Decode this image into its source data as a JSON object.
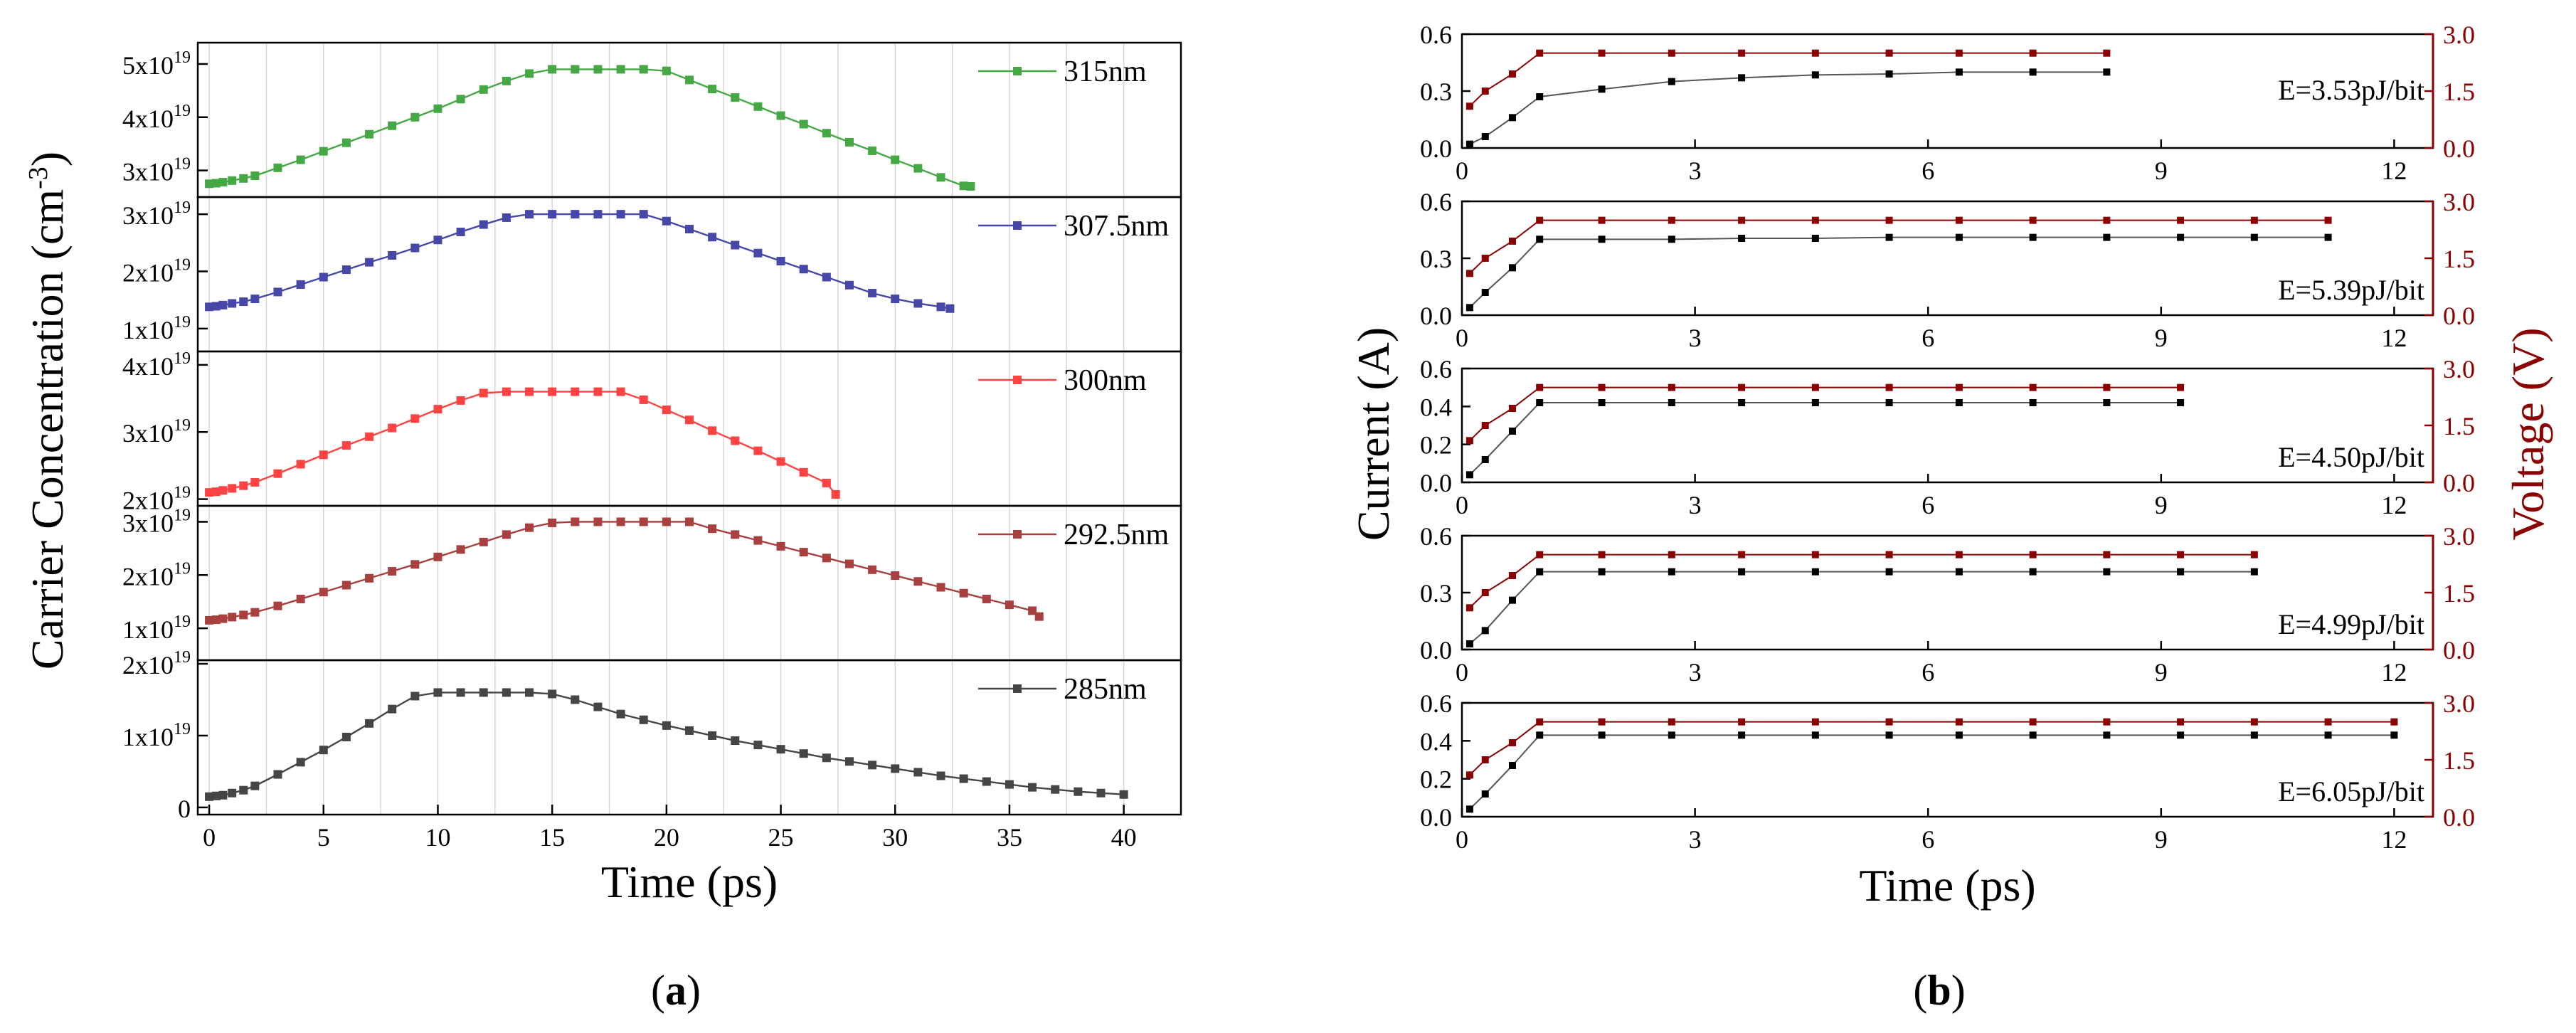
{
  "figure": {
    "label_a_pre": "(",
    "label_a_letter": "a",
    "label_a_post": ")",
    "label_b_pre": "(",
    "label_b_letter": "b",
    "label_b_post": ")"
  },
  "colors": {
    "s315": "#45a845",
    "s3075": "#4747a8",
    "s300": "#ff4242",
    "s2925": "#a84040",
    "s285": "#454545",
    "current": "#000000",
    "voltage": "#8b0000",
    "voltage_axis": "#8b0000"
  },
  "chart_data": [
    {
      "type": "line",
      "panel": "a",
      "xlabel": "Time (ps)",
      "ylabel": "Carrier Concentration (cm",
      "ylabel_sup": "-3",
      "ylabel_close": ")",
      "xlim": [
        -0.5,
        42.5
      ],
      "xticks": [
        0,
        5,
        10,
        15,
        20,
        25,
        30,
        35,
        40
      ],
      "vgrid": [
        2.5,
        7.5,
        12.5,
        17.5,
        22.5,
        27.5,
        32.5,
        37.5
      ],
      "panels": [
        {
          "name": "315nm",
          "color_key": "s315",
          "ylim": [
            2.5,
            5.4
          ],
          "ticks": [
            {
              "v": 3,
              "m": "3x10",
              "e": "19"
            },
            {
              "v": 4,
              "m": "4x10",
              "e": "19"
            },
            {
              "v": 5,
              "m": "5x10",
              "e": "19"
            }
          ],
          "x": [
            0,
            0.3,
            0.6,
            1,
            1.5,
            2,
            3,
            4,
            5,
            6,
            7,
            8,
            9,
            10,
            11,
            12,
            13,
            14,
            15,
            16,
            17,
            18,
            19,
            20,
            21,
            22,
            23,
            24,
            25,
            26,
            27,
            28,
            29,
            30,
            31,
            32,
            33,
            33.3
          ],
          "values": [
            2.75,
            2.76,
            2.78,
            2.81,
            2.85,
            2.9,
            3.05,
            3.2,
            3.36,
            3.52,
            3.68,
            3.84,
            4.0,
            4.16,
            4.34,
            4.52,
            4.68,
            4.82,
            4.9,
            4.9,
            4.9,
            4.9,
            4.9,
            4.87,
            4.7,
            4.53,
            4.37,
            4.2,
            4.03,
            3.87,
            3.7,
            3.53,
            3.37,
            3.2,
            3.04,
            2.87,
            2.71,
            2.7
          ]
        },
        {
          "name": "307.5nm",
          "color_key": "s3075",
          "ylim": [
            0.6,
            3.3
          ],
          "ticks": [
            {
              "v": 1,
              "m": "1x10",
              "e": "19"
            },
            {
              "v": 2,
              "m": "2x10",
              "e": "19"
            },
            {
              "v": 3,
              "m": "3x10",
              "e": "19"
            }
          ],
          "x": [
            0,
            0.3,
            0.6,
            1,
            1.5,
            2,
            3,
            4,
            5,
            6,
            7,
            8,
            9,
            10,
            11,
            12,
            13,
            14,
            15,
            16,
            17,
            18,
            19,
            20,
            21,
            22,
            23,
            24,
            25,
            26,
            27,
            28,
            29,
            30,
            31,
            32,
            32.4
          ],
          "values": [
            1.38,
            1.39,
            1.41,
            1.44,
            1.47,
            1.52,
            1.64,
            1.77,
            1.9,
            2.03,
            2.16,
            2.28,
            2.41,
            2.55,
            2.69,
            2.82,
            2.94,
            3.0,
            3.0,
            3.0,
            3.0,
            3.0,
            3.0,
            2.88,
            2.74,
            2.6,
            2.46,
            2.32,
            2.18,
            2.04,
            1.9,
            1.76,
            1.62,
            1.52,
            1.44,
            1.38,
            1.35
          ]
        },
        {
          "name": "300nm",
          "color_key": "s300",
          "ylim": [
            1.9,
            4.2
          ],
          "ticks": [
            {
              "v": 2,
              "m": "2x10",
              "e": "19"
            },
            {
              "v": 3,
              "m": "3x10",
              "e": "19"
            },
            {
              "v": 4,
              "m": "4x10",
              "e": "19"
            }
          ],
          "x": [
            0,
            0.3,
            0.6,
            1,
            1.5,
            2,
            3,
            4,
            5,
            6,
            7,
            8,
            9,
            10,
            11,
            12,
            13,
            14,
            15,
            16,
            17,
            18,
            19,
            20,
            21,
            22,
            23,
            24,
            25,
            26,
            27,
            27.4
          ],
          "values": [
            2.1,
            2.11,
            2.13,
            2.16,
            2.2,
            2.25,
            2.38,
            2.52,
            2.66,
            2.8,
            2.93,
            3.06,
            3.2,
            3.34,
            3.47,
            3.58,
            3.6,
            3.6,
            3.6,
            3.6,
            3.6,
            3.6,
            3.48,
            3.33,
            3.18,
            3.02,
            2.87,
            2.72,
            2.56,
            2.4,
            2.24,
            2.07
          ]
        },
        {
          "name": "292.5nm",
          "color_key": "s2925",
          "ylim": [
            0.4,
            3.3
          ],
          "ticks": [
            {
              "v": 1,
              "m": "1x10",
              "e": "19"
            },
            {
              "v": 2,
              "m": "2x10",
              "e": "19"
            },
            {
              "v": 3,
              "m": "3x10",
              "e": "19"
            }
          ],
          "x": [
            0,
            0.3,
            0.6,
            1,
            1.5,
            2,
            3,
            4,
            5,
            6,
            7,
            8,
            9,
            10,
            11,
            12,
            13,
            14,
            15,
            16,
            17,
            18,
            19,
            20,
            21,
            22,
            23,
            24,
            25,
            26,
            27,
            28,
            29,
            30,
            31,
            32,
            33,
            34,
            35,
            36,
            36.3
          ],
          "values": [
            1.15,
            1.16,
            1.18,
            1.21,
            1.25,
            1.3,
            1.42,
            1.55,
            1.68,
            1.81,
            1.94,
            2.07,
            2.2,
            2.34,
            2.48,
            2.62,
            2.76,
            2.89,
            2.98,
            3.0,
            3.0,
            3.0,
            3.0,
            3.0,
            3.0,
            2.87,
            2.76,
            2.65,
            2.54,
            2.43,
            2.32,
            2.21,
            2.1,
            1.99,
            1.88,
            1.77,
            1.66,
            1.55,
            1.44,
            1.33,
            1.22
          ]
        },
        {
          "name": "285nm",
          "color_key": "s285",
          "ylim": [
            -0.1,
            2.05
          ],
          "ticks": [
            {
              "v": 0,
              "m": "0",
              "e": ""
            },
            {
              "v": 1,
              "m": "1x10",
              "e": "19"
            },
            {
              "v": 2,
              "m": "2x10",
              "e": "19"
            }
          ],
          "x": [
            0,
            0.3,
            0.6,
            1,
            1.5,
            2,
            3,
            4,
            5,
            6,
            7,
            8,
            9,
            10,
            11,
            12,
            13,
            14,
            15,
            16,
            17,
            18,
            19,
            20,
            21,
            22,
            23,
            24,
            25,
            26,
            27,
            28,
            29,
            30,
            31,
            32,
            33,
            34,
            35,
            36,
            37,
            38,
            39,
            40
          ],
          "values": [
            0.15,
            0.16,
            0.17,
            0.2,
            0.24,
            0.3,
            0.46,
            0.63,
            0.8,
            0.98,
            1.17,
            1.37,
            1.55,
            1.6,
            1.6,
            1.6,
            1.6,
            1.6,
            1.58,
            1.5,
            1.4,
            1.3,
            1.22,
            1.14,
            1.07,
            1.0,
            0.93,
            0.87,
            0.81,
            0.75,
            0.69,
            0.64,
            0.59,
            0.54,
            0.49,
            0.44,
            0.4,
            0.36,
            0.32,
            0.28,
            0.25,
            0.22,
            0.2,
            0.18
          ]
        }
      ]
    },
    {
      "type": "line",
      "panel": "b",
      "xlabel": "Time (ps)",
      "ylabel_left": "Current (A)",
      "ylabel_right": "Voltage (V)",
      "xlim": [
        0,
        12.5
      ],
      "xticks": [
        0,
        3,
        6,
        9,
        12
      ],
      "y2lim": [
        0,
        3.0
      ],
      "y2ticks": [
        "0.0",
        "1.5",
        "3.0"
      ],
      "panels": [
        {
          "annotation": "E=3.53pJ/bit",
          "ylim": [
            0,
            0.6
          ],
          "yticks": [
            "0.0",
            "0.3",
            "0.6"
          ],
          "current": {
            "x": [
              0.1,
              0.3,
              0.65,
              1.0,
              1.8,
              2.7,
              3.6,
              4.55,
              5.5,
              6.4,
              7.35,
              8.3
            ],
            "values": [
              0.02,
              0.06,
              0.16,
              0.27,
              0.31,
              0.35,
              0.37,
              0.385,
              0.39,
              0.4,
              0.4,
              0.4
            ]
          },
          "voltage": {
            "x": [
              0.1,
              0.3,
              0.65,
              1.0,
              1.8,
              2.7,
              3.6,
              4.55,
              5.5,
              6.4,
              7.35,
              8.3
            ],
            "values": [
              1.1,
              1.5,
              1.95,
              2.5,
              2.5,
              2.5,
              2.5,
              2.5,
              2.5,
              2.5,
              2.5,
              2.5
            ]
          }
        },
        {
          "annotation": "E=5.39pJ/bit",
          "ylim": [
            0,
            0.6
          ],
          "yticks": [
            "0.0",
            "0.3",
            "0.6"
          ],
          "current": {
            "x": [
              0.1,
              0.3,
              0.65,
              1.0,
              1.8,
              2.7,
              3.6,
              4.55,
              5.5,
              6.4,
              7.35,
              8.3,
              9.25,
              10.2,
              11.15
            ],
            "values": [
              0.04,
              0.12,
              0.25,
              0.4,
              0.4,
              0.4,
              0.405,
              0.405,
              0.41,
              0.41,
              0.41,
              0.41,
              0.41,
              0.41,
              0.41
            ]
          },
          "voltage": {
            "x": [
              0.1,
              0.3,
              0.65,
              1.0,
              1.8,
              2.7,
              3.6,
              4.55,
              5.5,
              6.4,
              7.35,
              8.3,
              9.25,
              10.2,
              11.15
            ],
            "values": [
              1.1,
              1.5,
              1.95,
              2.5,
              2.5,
              2.5,
              2.5,
              2.5,
              2.5,
              2.5,
              2.5,
              2.5,
              2.5,
              2.5,
              2.5
            ]
          }
        },
        {
          "annotation": "E=4.50pJ/bit",
          "ylim": [
            0,
            0.6
          ],
          "yticks": [
            "0.0",
            "0.2",
            "0.4",
            "0.6"
          ],
          "current": {
            "x": [
              0.1,
              0.3,
              0.65,
              1.0,
              1.8,
              2.7,
              3.6,
              4.55,
              5.5,
              6.4,
              7.35,
              8.3,
              9.25
            ],
            "values": [
              0.04,
              0.12,
              0.27,
              0.42,
              0.42,
              0.42,
              0.42,
              0.42,
              0.42,
              0.42,
              0.42,
              0.42,
              0.42
            ]
          },
          "voltage": {
            "x": [
              0.1,
              0.3,
              0.65,
              1.0,
              1.8,
              2.7,
              3.6,
              4.55,
              5.5,
              6.4,
              7.35,
              8.3,
              9.25
            ],
            "values": [
              1.1,
              1.5,
              1.95,
              2.5,
              2.5,
              2.5,
              2.5,
              2.5,
              2.5,
              2.5,
              2.5,
              2.5,
              2.5
            ]
          }
        },
        {
          "annotation": "E=4.99pJ/bit",
          "ylim": [
            0,
            0.6
          ],
          "yticks": [
            "0.0",
            "0.3",
            "0.6"
          ],
          "current": {
            "x": [
              0.1,
              0.3,
              0.65,
              1.0,
              1.8,
              2.7,
              3.6,
              4.55,
              5.5,
              6.4,
              7.35,
              8.3,
              9.25,
              10.2
            ],
            "values": [
              0.03,
              0.1,
              0.26,
              0.41,
              0.41,
              0.41,
              0.41,
              0.41,
              0.41,
              0.41,
              0.41,
              0.41,
              0.41,
              0.41
            ]
          },
          "voltage": {
            "x": [
              0.1,
              0.3,
              0.65,
              1.0,
              1.8,
              2.7,
              3.6,
              4.55,
              5.5,
              6.4,
              7.35,
              8.3,
              9.25,
              10.2
            ],
            "values": [
              1.1,
              1.5,
              1.95,
              2.5,
              2.5,
              2.5,
              2.5,
              2.5,
              2.5,
              2.5,
              2.5,
              2.5,
              2.5,
              2.5
            ]
          }
        },
        {
          "annotation": "E=6.05pJ/bit",
          "ylim": [
            0,
            0.6
          ],
          "yticks": [
            "0.0",
            "0.2",
            "0.4",
            "0.6"
          ],
          "current": {
            "x": [
              0.1,
              0.3,
              0.65,
              1.0,
              1.8,
              2.7,
              3.6,
              4.55,
              5.5,
              6.4,
              7.35,
              8.3,
              9.25,
              10.2,
              11.15,
              12.0
            ],
            "values": [
              0.04,
              0.12,
              0.27,
              0.43,
              0.43,
              0.43,
              0.43,
              0.43,
              0.43,
              0.43,
              0.43,
              0.43,
              0.43,
              0.43,
              0.43,
              0.43
            ]
          },
          "voltage": {
            "x": [
              0.1,
              0.3,
              0.65,
              1.0,
              1.8,
              2.7,
              3.6,
              4.55,
              5.5,
              6.4,
              7.35,
              8.3,
              9.25,
              10.2,
              11.15,
              12.0
            ],
            "values": [
              1.1,
              1.5,
              1.95,
              2.5,
              2.5,
              2.5,
              2.5,
              2.5,
              2.5,
              2.5,
              2.5,
              2.5,
              2.5,
              2.5,
              2.5,
              2.5
            ]
          }
        }
      ]
    }
  ]
}
